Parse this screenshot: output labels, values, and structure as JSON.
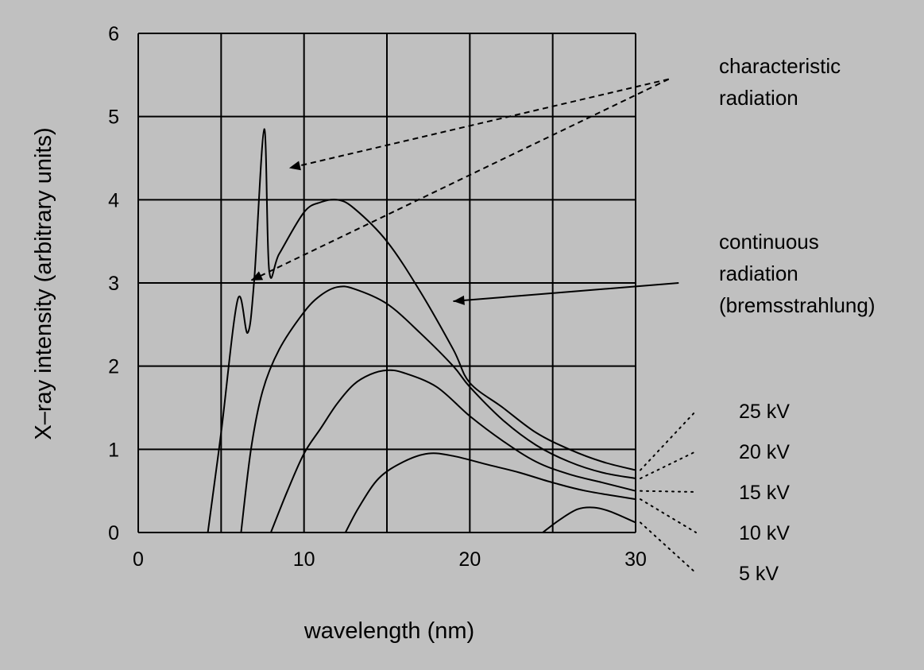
{
  "chart_data": {
    "type": "line",
    "xlabel": "wavelength (nm)",
    "ylabel": "X–ray intensity (arbitrary units)",
    "xlim": [
      0,
      30
    ],
    "ylim": [
      0,
      6
    ],
    "x_ticks": [
      "0",
      "10",
      "20",
      "30"
    ],
    "y_ticks": [
      "0",
      "1",
      "2",
      "3",
      "4",
      "5",
      "6"
    ],
    "grid": true,
    "series": [
      {
        "name": "25 kV",
        "points": [
          [
            4.2,
            0
          ],
          [
            5,
            1.2
          ],
          [
            6,
            2.8
          ],
          [
            6.6,
            2.4
          ],
          [
            7,
            3.05
          ],
          [
            7.6,
            4.85
          ],
          [
            7.9,
            3.15
          ],
          [
            8.5,
            3.35
          ],
          [
            10,
            3.85
          ],
          [
            11,
            3.97
          ],
          [
            12,
            4.0
          ],
          [
            13,
            3.9
          ],
          [
            15,
            3.5
          ],
          [
            17,
            2.9
          ],
          [
            19,
            2.2
          ],
          [
            20,
            1.8
          ],
          [
            22,
            1.5
          ],
          [
            24,
            1.2
          ],
          [
            26,
            1.0
          ],
          [
            28,
            0.85
          ],
          [
            30,
            0.75
          ]
        ]
      },
      {
        "name": "20 kV",
        "points": [
          [
            6.2,
            0
          ],
          [
            6.8,
            1.0
          ],
          [
            7.5,
            1.7
          ],
          [
            8.5,
            2.2
          ],
          [
            10,
            2.65
          ],
          [
            11,
            2.85
          ],
          [
            12,
            2.95
          ],
          [
            13,
            2.93
          ],
          [
            15,
            2.75
          ],
          [
            17,
            2.4
          ],
          [
            19,
            2.0
          ],
          [
            20,
            1.75
          ],
          [
            22,
            1.35
          ],
          [
            24,
            1.05
          ],
          [
            26,
            0.85
          ],
          [
            28,
            0.72
          ],
          [
            30,
            0.65
          ]
        ]
      },
      {
        "name": "15 kV",
        "points": [
          [
            8,
            0
          ],
          [
            9,
            0.5
          ],
          [
            10,
            0.95
          ],
          [
            11,
            1.25
          ],
          [
            12,
            1.55
          ],
          [
            13,
            1.78
          ],
          [
            14,
            1.9
          ],
          [
            15,
            1.95
          ],
          [
            16,
            1.92
          ],
          [
            18,
            1.75
          ],
          [
            20,
            1.4
          ],
          [
            22,
            1.1
          ],
          [
            24,
            0.85
          ],
          [
            26,
            0.7
          ],
          [
            28,
            0.6
          ],
          [
            30,
            0.5
          ]
        ]
      },
      {
        "name": "10 kV",
        "points": [
          [
            12.5,
            0
          ],
          [
            13.3,
            0.3
          ],
          [
            14.5,
            0.65
          ],
          [
            16,
            0.85
          ],
          [
            17.5,
            0.95
          ],
          [
            19,
            0.92
          ],
          [
            21,
            0.82
          ],
          [
            23,
            0.72
          ],
          [
            25,
            0.6
          ],
          [
            27,
            0.5
          ],
          [
            30,
            0.4
          ]
        ]
      },
      {
        "name": "5 kV",
        "points": [
          [
            24.4,
            0
          ],
          [
            25.4,
            0.15
          ],
          [
            26.5,
            0.28
          ],
          [
            27.5,
            0.3
          ],
          [
            28.5,
            0.25
          ],
          [
            30,
            0.12
          ]
        ]
      }
    ],
    "annotations": {
      "characteristic": [
        "characteristic",
        "radiation"
      ],
      "continuous": [
        "continuous",
        "radiation",
        "(bremsstrahlung)"
      ]
    }
  }
}
